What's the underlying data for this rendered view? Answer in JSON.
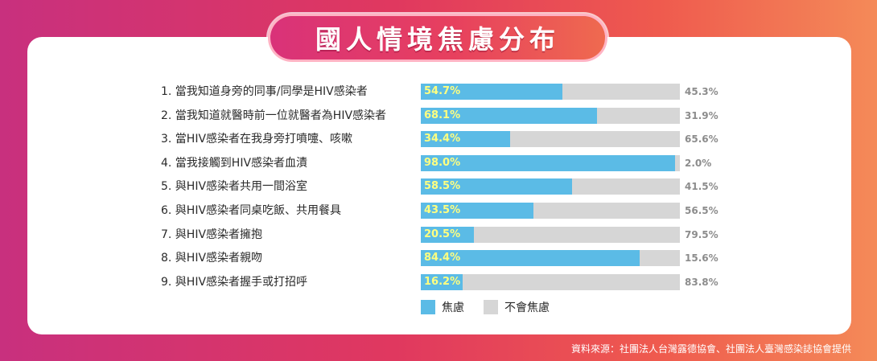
{
  "chart_data": {
    "type": "bar",
    "orientation": "horizontal",
    "stacked": true,
    "title": "國人情境焦慮分布",
    "categories": [
      "1. 當我知道身旁的同事/同學是HIV感染者",
      "2. 當我知道就醫時前一位就醫者為HIV感染者",
      "3. 當HIV感染者在我身旁打噴嚏、咳嗽",
      "4. 當我接觸到HIV感染者血漬",
      "5. 與HIV感染者共用一間浴室",
      "6. 與HIV感染者同桌吃飯、共用餐具",
      "7. 與HIV感染者擁抱",
      "8. 與HIV感染者親吻",
      "9. 與HIV感染者握手或打招呼"
    ],
    "series": [
      {
        "name": "焦慮",
        "color": "#5bbbe6",
        "values": [
          54.7,
          68.1,
          34.4,
          98.0,
          58.5,
          43.5,
          20.5,
          84.4,
          16.2
        ],
        "labels": [
          "54.7%",
          "68.1%",
          "34.4%",
          "98.0%",
          "58.5%",
          "43.5%",
          "20.5%",
          "84.4%",
          "16.2%"
        ]
      },
      {
        "name": "不會焦慮",
        "color": "#d6d6d6",
        "values": [
          45.3,
          31.9,
          65.6,
          2.0,
          41.5,
          56.5,
          79.5,
          15.6,
          83.8
        ],
        "labels": [
          "45.3%",
          "31.9%",
          "65.6%",
          "2.0%",
          "41.5%",
          "56.5%",
          "79.5%",
          "15.6%",
          "83.8%"
        ]
      }
    ],
    "xlim": [
      0,
      100
    ],
    "legend_position": "bottom-left",
    "grid": false
  },
  "source_text": "資料來源：社團法人台灣露德協會、社團法人臺灣感染誌協會提供"
}
